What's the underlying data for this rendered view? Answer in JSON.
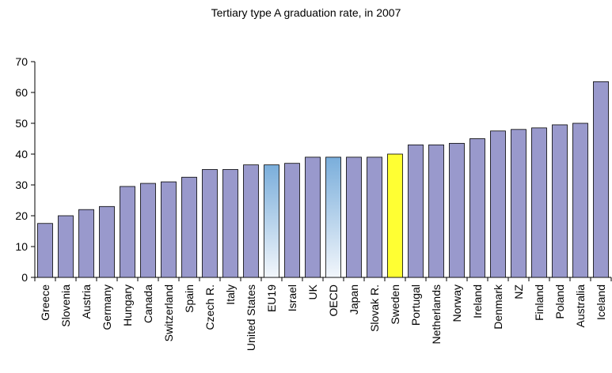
{
  "chart_data": {
    "type": "bar",
    "title": "Tertiary type A graduation rate, in 2007",
    "xlabel": "",
    "ylabel": "",
    "ylim": [
      0,
      70
    ],
    "yticks": [
      0,
      10,
      20,
      30,
      40,
      50,
      60,
      70
    ],
    "grid": false,
    "legend": "none",
    "categories": [
      "Greece",
      "Slovenia",
      "Austria",
      "Germany",
      "Hungary",
      "Canada",
      "Switzerland",
      "Spain",
      "Czech R.",
      "Italy",
      "United States",
      "EU19",
      "Israel",
      "UK",
      "OECD",
      "Japan",
      "Slovak R.",
      "Sweden",
      "Portugal",
      "Netherlands",
      "Norway",
      "Ireland",
      "Denmark",
      "NZ",
      "Finland",
      "Poland",
      "Australia",
      "Iceland"
    ],
    "values": [
      17.5,
      20,
      22,
      23,
      29.5,
      30.5,
      31,
      32.5,
      35,
      35,
      36.5,
      36.5,
      37,
      39,
      39,
      39,
      39,
      40,
      43,
      43,
      43.5,
      45,
      47.5,
      48,
      48.5,
      49.5,
      50,
      63.5
    ],
    "colors": {
      "default": "#9999cc",
      "average_top": "#7aaedb",
      "average_bottom": "#f2f6fb",
      "highlight": "#ffff33",
      "outline": "#000000"
    },
    "average_categories": [
      "EU19",
      "OECD"
    ],
    "highlight_categories": [
      "Sweden"
    ]
  }
}
